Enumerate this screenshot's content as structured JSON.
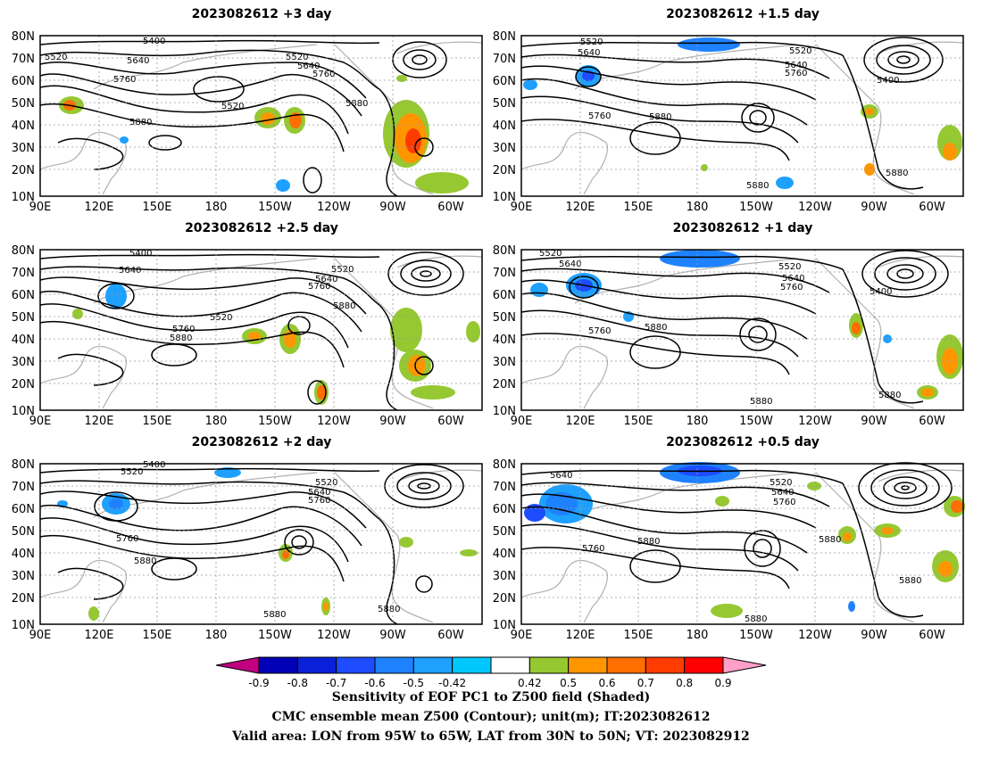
{
  "panels": [
    {
      "title": "2023082612 +3 day",
      "contour_labels": [
        "5400",
        "5520",
        "5640",
        "5760",
        "5880",
        "5520",
        "5640",
        "5760",
        "5880",
        "5520"
      ]
    },
    {
      "title": "2023082612 +1.5 day",
      "contour_labels": [
        "5520",
        "5640",
        "5520",
        "5640",
        "5760",
        "5400",
        "5760",
        "5880",
        "5880",
        "5880"
      ]
    },
    {
      "title": "2023082612 +2.5 day",
      "contour_labels": [
        "5400",
        "5640",
        "5520",
        "5640",
        "5760",
        "5520",
        "5760",
        "5880",
        "5880"
      ]
    },
    {
      "title": "2023082612 +1 day",
      "contour_labels": [
        "5520",
        "5640",
        "5520",
        "5640",
        "5760",
        "5400",
        "5760",
        "5880",
        "5880",
        "5880"
      ]
    },
    {
      "title": "2023082612 +2 day",
      "contour_labels": [
        "5520",
        "5400",
        "5520",
        "5640",
        "5760",
        "5760",
        "5880",
        "5880",
        "5880"
      ]
    },
    {
      "title": "2023082612 +0.5 day",
      "contour_labels": [
        "5640",
        "5520",
        "5640",
        "5760",
        "5760",
        "5880",
        "5880",
        "5880",
        "5880"
      ]
    }
  ],
  "axes": {
    "lat_ticks": [
      "80N",
      "70N",
      "60N",
      "50N",
      "40N",
      "30N",
      "20N",
      "10N"
    ],
    "lon_ticks": [
      "90E",
      "120E",
      "150E",
      "180",
      "150W",
      "120W",
      "90W",
      "60W"
    ]
  },
  "colorbar": {
    "levels": [
      "-0.9",
      "-0.8",
      "-0.7",
      "-0.6",
      "-0.5",
      "-0.42",
      "0.42",
      "0.5",
      "0.6",
      "0.7",
      "0.8",
      "0.9"
    ],
    "colors": [
      "#c0007e",
      "#0000b4",
      "#0a20d8",
      "#1e4cff",
      "#1e82ff",
      "#1ea0ff",
      "#00c8ff",
      "#ffffff",
      "#96c832",
      "#ff9600",
      "#ff6e00",
      "#ff3c00",
      "#ff0000",
      "#ffa0c8"
    ]
  },
  "caption": {
    "line1": "Sensitivity of EOF PC1 to Z500 field (Shaded)",
    "line2": "CMC ensemble mean Z500 (Contour); unit(m); IT:2023082612",
    "line3": "Valid area: LON from 95W to 65W, LAT from 30N to 50N; VT: 2023082912"
  }
}
